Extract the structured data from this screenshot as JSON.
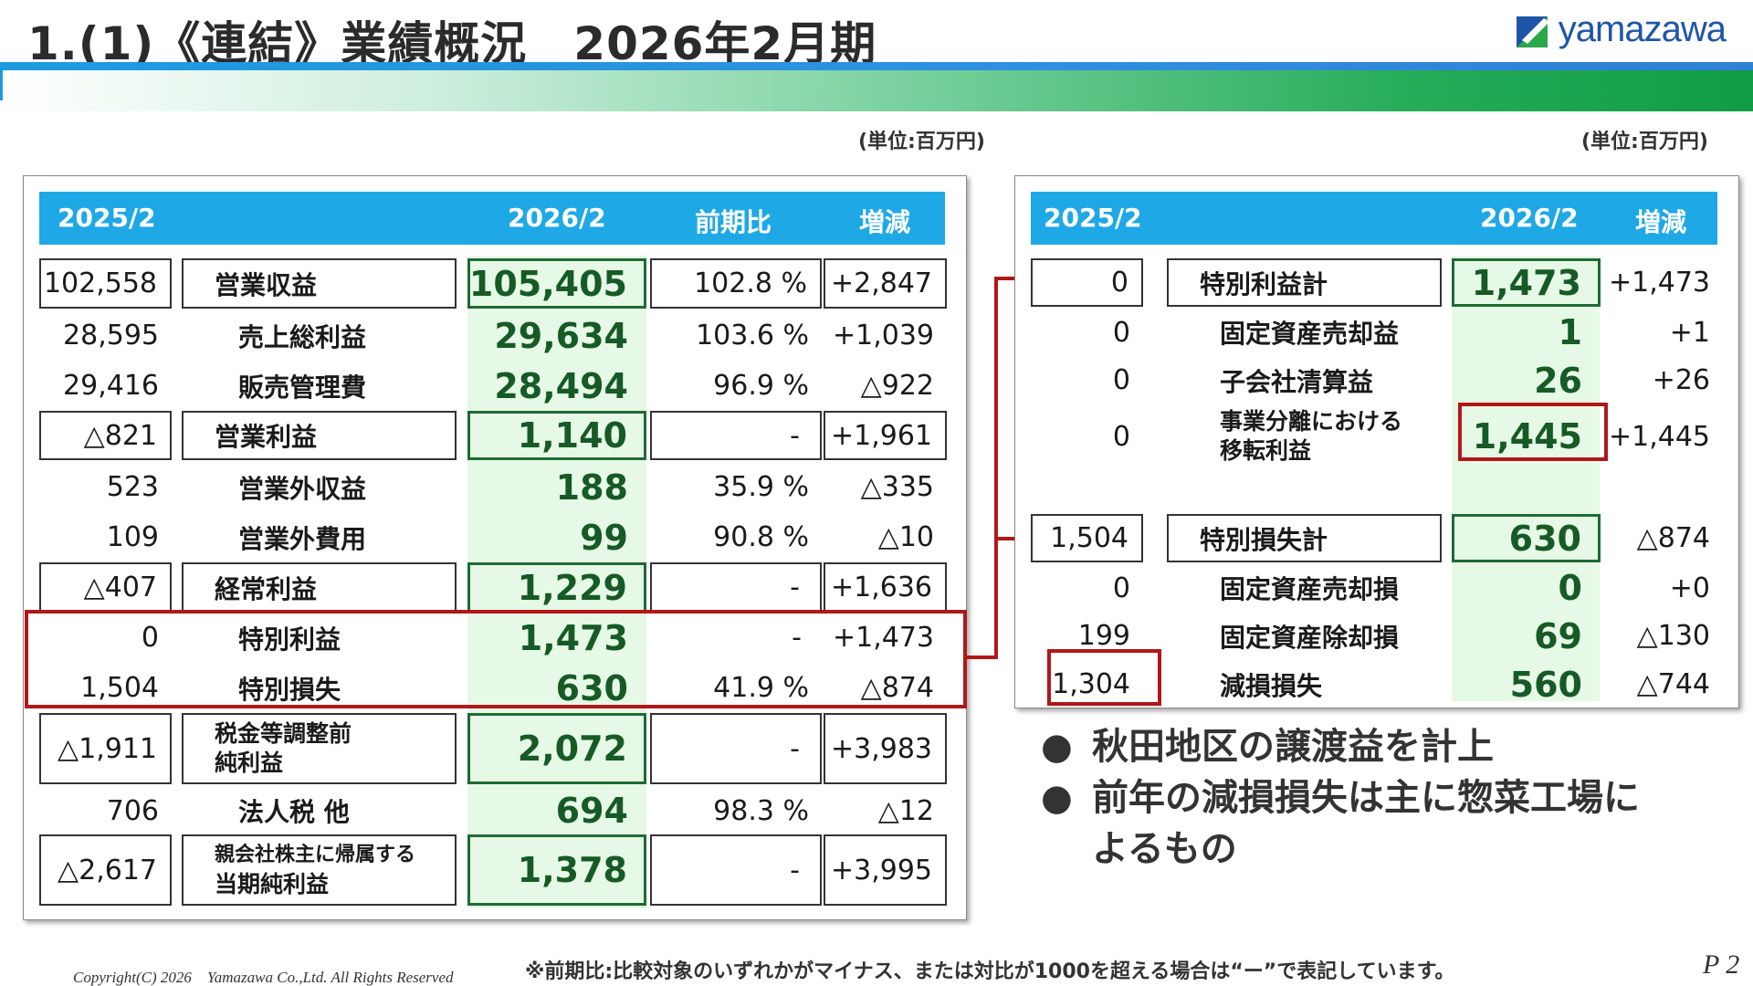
{
  "title": "1.(1)《連結》業績概況　2026年2月期",
  "logo_text": "yamazawa",
  "left_table": {
    "unit": "(単位:百万円)",
    "headers": [
      "2025/2",
      "2026/2",
      "前期比",
      "増減"
    ],
    "rows": [
      {
        "prev": "102,558",
        "label": "営業収益",
        "cur": "105,405",
        "ratio": "102.8 %",
        "diff": "+2,847"
      },
      {
        "prev": "28,595",
        "label": "売上総利益",
        "cur": "29,634",
        "ratio": "103.6 %",
        "diff": "+1,039"
      },
      {
        "prev": "29,416",
        "label": "販売管理費",
        "cur": "28,494",
        "ratio": "96.9 %",
        "diff": "△922"
      },
      {
        "prev": "△821",
        "label": "営業利益",
        "cur": "1,140",
        "ratio": "-",
        "diff": "+1,961"
      },
      {
        "prev": "523",
        "label": "営業外収益",
        "cur": "188",
        "ratio": "35.9 %",
        "diff": "△335"
      },
      {
        "prev": "109",
        "label": "営業外費用",
        "cur": "99",
        "ratio": "90.8 %",
        "diff": "△10"
      },
      {
        "prev": "△407",
        "label": "経常利益",
        "cur": "1,229",
        "ratio": "-",
        "diff": "+1,636"
      },
      {
        "prev": "0",
        "label": "特別利益",
        "cur": "1,473",
        "ratio": "-",
        "diff": "+1,473"
      },
      {
        "prev": "1,504",
        "label": "特別損失",
        "cur": "630",
        "ratio": "41.9 %",
        "diff": "△874"
      },
      {
        "prev": "△1,911",
        "label_line1": "税金等調整前",
        "label_line2": "純利益",
        "cur": "2,072",
        "ratio": "-",
        "diff": "+3,983"
      },
      {
        "prev": "706",
        "label": "法人税 他",
        "cur": "694",
        "ratio": "98.3 %",
        "diff": "△12"
      },
      {
        "prev": "△2,617",
        "label_line1": "親会社株主に帰属する",
        "label_line2": "当期純利益",
        "cur": "1,378",
        "ratio": "-",
        "diff": "+3,995"
      }
    ]
  },
  "right_table": {
    "unit": "(単位:百万円)",
    "headers": [
      "2025/2",
      "2026/2",
      "増減"
    ],
    "rows": [
      {
        "prev": "0",
        "label": "特別利益計",
        "cur": "1,473",
        "diff": "+1,473"
      },
      {
        "prev": "0",
        "label": "固定資産売却益",
        "cur": "1",
        "diff": "+1"
      },
      {
        "prev": "0",
        "label": "子会社清算益",
        "cur": "26",
        "diff": "+26"
      },
      {
        "prev": "0",
        "label_line1": "事業分離における",
        "label_line2": "移転利益",
        "cur": "1,445",
        "diff": "+1,445"
      },
      {
        "prev": "1,504",
        "label": "特別損失計",
        "cur": "630",
        "diff": "△874"
      },
      {
        "prev": "0",
        "label": "固定資産売却損",
        "cur": "0",
        "diff": "+0"
      },
      {
        "prev": "199",
        "label": "固定資産除却損",
        "cur": "69",
        "diff": "△130"
      },
      {
        "prev": "1,304",
        "label": "減損損失",
        "cur": "560",
        "diff": "△744"
      }
    ]
  },
  "bullets": [
    {
      "marker": "●",
      "text": "秋田地区の譲渡益を計上"
    },
    {
      "marker": "●",
      "text_line1": "前年の減損損失は主に惣菜工場に",
      "text_line2": "よるもの"
    }
  ],
  "footer": {
    "copyright": "Copyright(C) 2026　Yamazawa Co.,Ltd.  All Rights Reserved",
    "note": "※前期比:比較対象のいずれかがマイナス、または対比が1000を超える場合は“ー”で表記しています。",
    "page": "P 2"
  },
  "colors": {
    "header_blue": "#1fa8e6",
    "highlight_red": "#b01818",
    "value_green": "#165a25",
    "column_green_bg": "#e6f9e6"
  }
}
